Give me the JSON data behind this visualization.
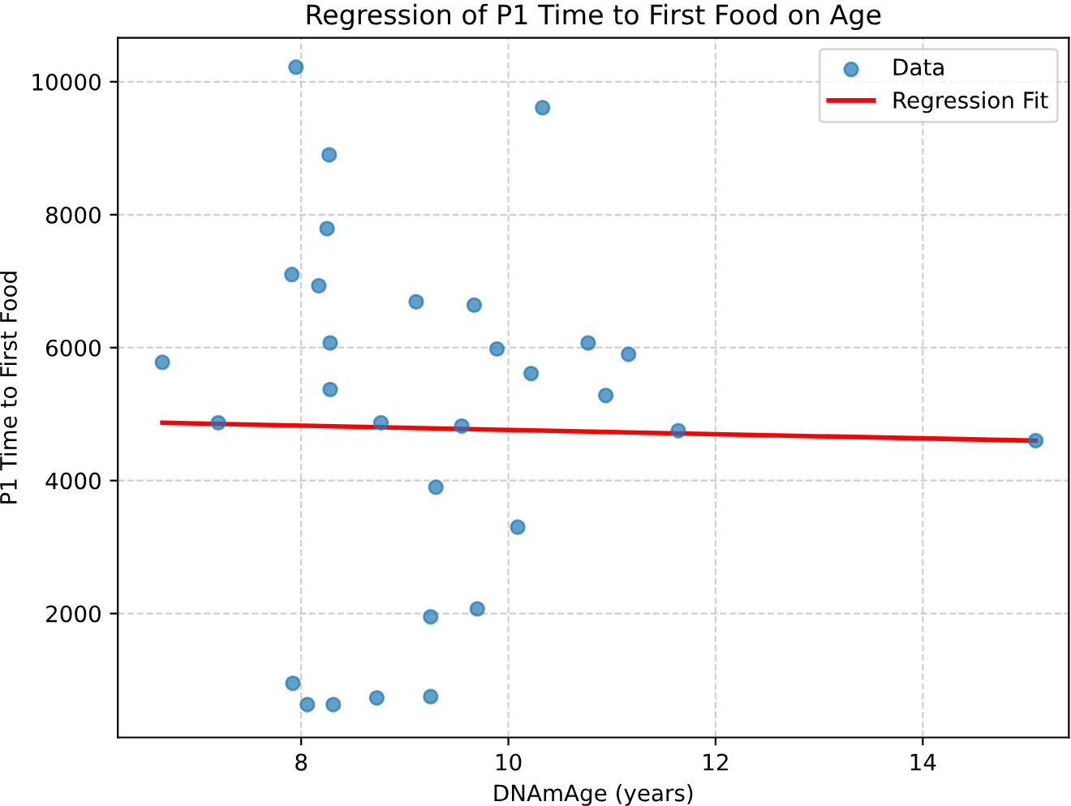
{
  "chart_data": {
    "type": "scatter",
    "title": "Regression of P1 Time to First Food on Age",
    "xlabel": "DNAmAge (years)",
    "ylabel": "P1 Time to First Food",
    "xlim": [
      6.23,
      15.41
    ],
    "ylim": [
      135,
      10660
    ],
    "xticks": [
      8,
      10,
      12,
      14
    ],
    "yticks": [
      2000,
      4000,
      6000,
      8000,
      10000
    ],
    "grid": true,
    "legend": "top right",
    "series": [
      {
        "name": "Data",
        "marker": "circle",
        "color": "#1f77b4",
        "x": [
          7.95,
          10.33,
          8.27,
          8.25,
          7.91,
          8.17,
          9.11,
          9.67,
          8.28,
          9.89,
          10.77,
          11.16,
          6.66,
          10.22,
          8.28,
          10.94,
          7.2,
          8.77,
          9.55,
          11.64,
          15.09,
          9.3,
          10.09,
          9.7,
          9.25,
          7.92,
          8.06,
          8.31,
          8.73,
          9.25
        ],
        "values": [
          10220,
          9610,
          8900,
          7790,
          7100,
          6930,
          6690,
          6640,
          6070,
          5980,
          6070,
          5900,
          5780,
          5610,
          5370,
          5280,
          4870,
          4870,
          4820,
          4750,
          4600,
          3900,
          3300,
          2070,
          1950,
          950,
          630,
          630,
          730,
          750
        ]
      },
      {
        "name": "Regression Fit",
        "type": "line",
        "color": "#ff0000",
        "marker": "none",
        "line_style": "solid",
        "x": [
          6.66,
          15.09
        ],
        "values": [
          4870,
          4600
        ]
      }
    ]
  }
}
